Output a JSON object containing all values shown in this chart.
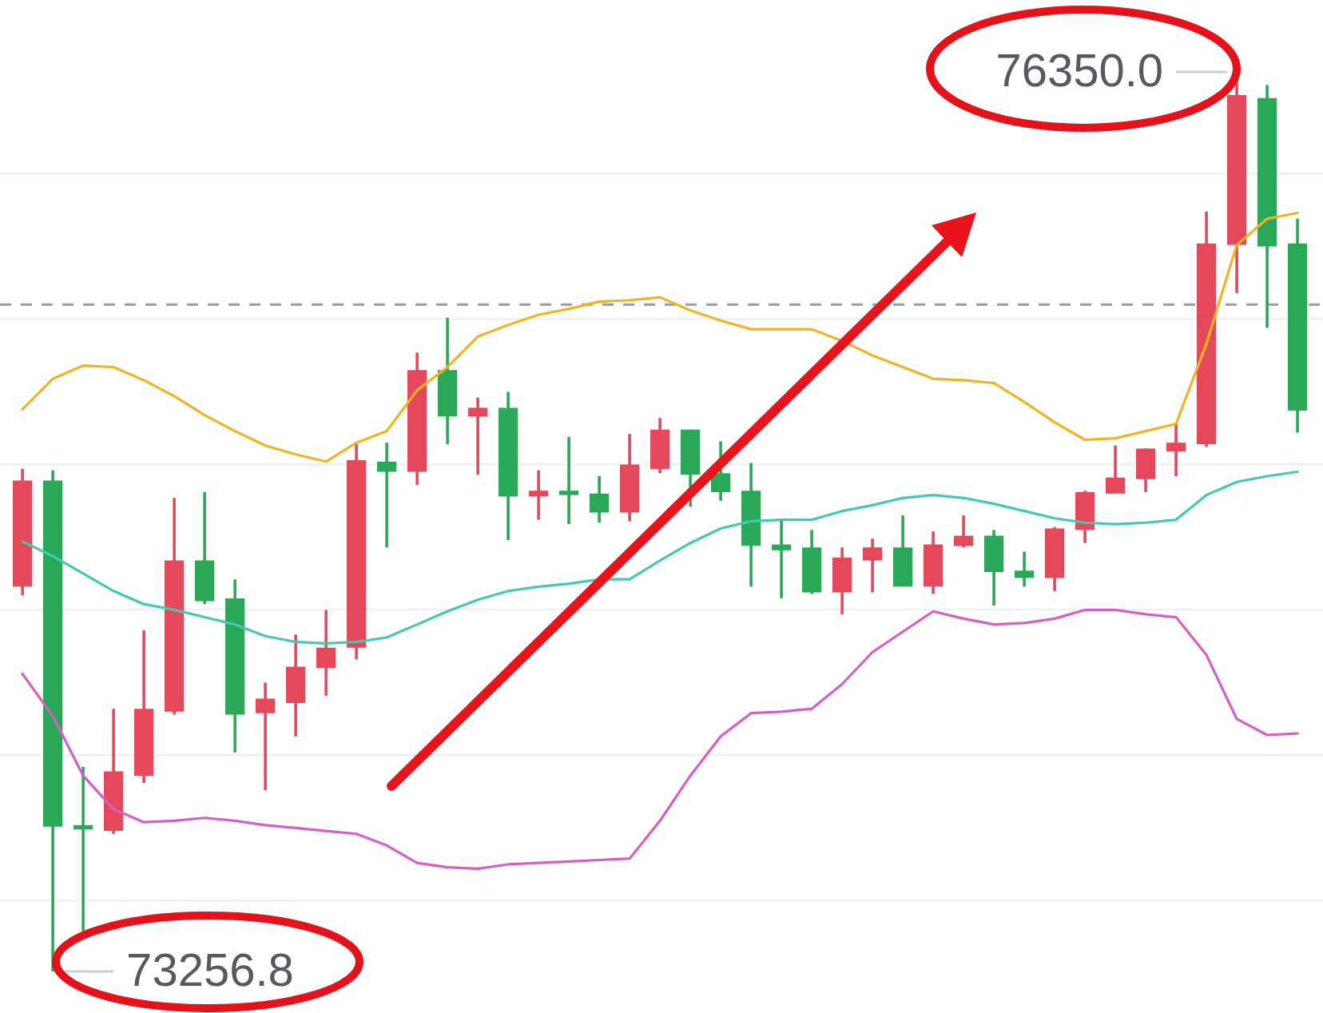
{
  "chart_data": {
    "type": "candlestick",
    "categories": [
      null,
      null,
      null,
      null,
      null,
      null,
      null,
      null,
      null,
      null,
      null,
      null,
      null,
      null,
      null,
      null,
      null,
      null,
      null,
      null,
      null,
      null,
      null,
      null,
      null,
      null,
      null,
      null,
      null,
      null,
      null,
      null,
      null,
      null,
      null,
      null,
      null,
      null,
      null,
      null,
      null,
      null,
      null
    ],
    "ohlc": [
      [
        74580,
        74985,
        74550,
        74945
      ],
      [
        74945,
        74980,
        73256.8,
        73755
      ],
      [
        73760,
        73960,
        73395,
        73745
      ],
      [
        73740,
        74160,
        73730,
        73945
      ],
      [
        73930,
        74430,
        73905,
        74160
      ],
      [
        74150,
        74885,
        74140,
        74670
      ],
      [
        74670,
        74905,
        74520,
        74530
      ],
      [
        74540,
        74605,
        74010,
        74140
      ],
      [
        74145,
        74250,
        73880,
        74195
      ],
      [
        74180,
        74415,
        74065,
        74305
      ],
      [
        74300,
        74500,
        74205,
        74370
      ],
      [
        74370,
        75070,
        74330,
        75015
      ],
      [
        75010,
        75075,
        74715,
        74975
      ],
      [
        74975,
        75385,
        74930,
        75325
      ],
      [
        75325,
        75505,
        75070,
        75165
      ],
      [
        75165,
        75230,
        74965,
        75195
      ],
      [
        75195,
        75250,
        74740,
        74890
      ],
      [
        74890,
        74980,
        74810,
        74910
      ],
      [
        74910,
        75095,
        74795,
        74895
      ],
      [
        74900,
        74960,
        74800,
        74835
      ],
      [
        74835,
        75105,
        74805,
        75000
      ],
      [
        74985,
        75160,
        74970,
        75120
      ],
      [
        75120,
        75120,
        74855,
        74965
      ],
      [
        74970,
        75080,
        74875,
        74905
      ],
      [
        74910,
        75005,
        74580,
        74720
      ],
      [
        74725,
        74810,
        74540,
        74705
      ],
      [
        74715,
        74775,
        74555,
        74560
      ],
      [
        74560,
        74715,
        74485,
        74680
      ],
      [
        74670,
        74745,
        74560,
        74715
      ],
      [
        74715,
        74825,
        74580,
        74580
      ],
      [
        74580,
        74770,
        74555,
        74725
      ],
      [
        74720,
        74825,
        74715,
        74755
      ],
      [
        74755,
        74775,
        74515,
        74630
      ],
      [
        74635,
        74700,
        74580,
        74610
      ],
      [
        74610,
        74785,
        74565,
        74780
      ],
      [
        74775,
        74910,
        74730,
        74905
      ],
      [
        74900,
        75065,
        74900,
        74955
      ],
      [
        74950,
        75055,
        74905,
        75055
      ],
      [
        75045,
        75140,
        74960,
        75075
      ],
      [
        75070,
        75870,
        75060,
        75760
      ],
      [
        75755,
        76350.0,
        75590,
        76270
      ],
      [
        76260,
        76305,
        75470,
        75750
      ],
      [
        75760,
        75845,
        75110,
        75185
      ]
    ],
    "colors": [
      "#e5475b",
      "#29a857",
      "#29a857",
      "#e5475b",
      "#e5475b",
      "#e5475b",
      "#29a857",
      "#29a857",
      "#e5475b",
      "#e5475b",
      "#e5475b",
      "#e5475b",
      "#29a857",
      "#e5475b",
      "#29a857",
      "#e5475b",
      "#29a857",
      "#e5475b",
      "#29a857",
      "#29a857",
      "#e5475b",
      "#e5475b",
      "#29a857",
      "#29a857",
      "#29a857",
      "#29a857",
      "#29a857",
      "#e5475b",
      "#e5475b",
      "#29a857",
      "#e5475b",
      "#e5475b",
      "#29a857",
      "#29a857",
      "#e5475b",
      "#e5475b",
      "#e5475b",
      "#e5475b",
      "#e5475b",
      "#e5475b",
      "#e5475b",
      "#29a857",
      "#29a857"
    ],
    "series": [
      {
        "type": "line",
        "color": "#f0b323",
        "values": [
          75190,
          75295,
          75340,
          75335,
          75290,
          75235,
          75170,
          75115,
          75065,
          75035,
          75010,
          75075,
          75115,
          75255,
          75335,
          75440,
          75480,
          75515,
          75535,
          75560,
          75565,
          75575,
          75530,
          75495,
          75465,
          75465,
          75465,
          75425,
          75375,
          75335,
          75295,
          75290,
          75280,
          75215,
          75145,
          75085,
          75090,
          75115,
          75140,
          75415,
          75755,
          75845,
          75865
        ]
      },
      {
        "type": "line",
        "color": "#45c8b0",
        "values": [
          74735,
          74685,
          74625,
          74565,
          74520,
          74500,
          74475,
          74450,
          74410,
          74390,
          74385,
          74390,
          74405,
          74450,
          74495,
          74535,
          74565,
          74580,
          74590,
          74605,
          74605,
          74670,
          74730,
          74780,
          74805,
          74810,
          74810,
          74840,
          74860,
          74885,
          74895,
          74885,
          74865,
          74840,
          74815,
          74800,
          74795,
          74800,
          74810,
          74895,
          74940,
          74960,
          74975
        ]
      },
      {
        "type": "line",
        "color": "#d65fc2",
        "values": [
          74280,
          74135,
          73930,
          73815,
          73770,
          73775,
          73785,
          73775,
          73760,
          73750,
          73740,
          73730,
          73690,
          73630,
          73615,
          73610,
          73625,
          73630,
          73635,
          73640,
          73645,
          73775,
          73930,
          74065,
          74145,
          74150,
          74160,
          74245,
          74355,
          74425,
          74495,
          74470,
          74450,
          74455,
          74470,
          74500,
          74500,
          74485,
          74475,
          74345,
          74125,
          74070,
          74075
        ]
      }
    ],
    "yticks": [
      {
        "value": 73500,
        "label": null
      },
      {
        "value": 74000,
        "label": null
      },
      {
        "value": 74500,
        "label": null
      },
      {
        "value": 75000,
        "label": null
      },
      {
        "value": 75500,
        "label": null
      },
      {
        "value": 76000,
        "label": null
      }
    ],
    "grid": "y",
    "tick_labels": false,
    "ref_lines": [
      {
        "axis": "y",
        "value": 75550,
        "color": "#9c9c9c",
        "line_style": "dashed"
      }
    ],
    "annotations": [
      "76350.0",
      "73256.8"
    ]
  }
}
